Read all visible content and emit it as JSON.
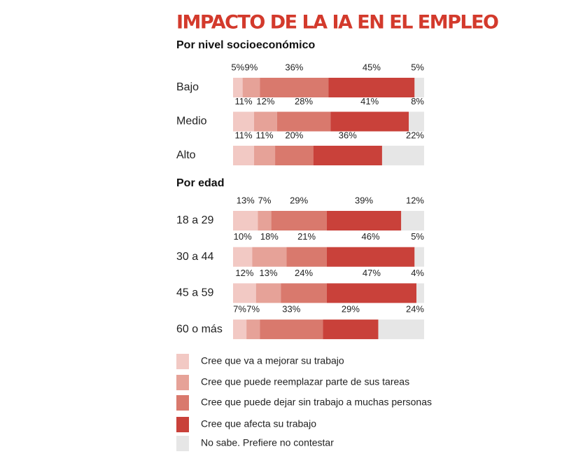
{
  "title": "IMPACTO DE LA IA  EN EL EMPLEO",
  "chart_data": [
    {
      "type": "bar",
      "stacked": true,
      "subtitle": "Por nivel socioeconómico",
      "categories": [
        "Bajo",
        "Medio",
        "Alto"
      ],
      "xlim": [
        0,
        100
      ],
      "series": [
        {
          "name": "Cree que va a mejorar su trabajo",
          "color": "#f2c9c4",
          "values": [
            5,
            11,
            11
          ],
          "value_labels": [
            "5%",
            "11%",
            "11%"
          ]
        },
        {
          "name": "Cree que puede reemplazar parte de sus tareas",
          "color": "#e6a298",
          "values": [
            9,
            12,
            11
          ],
          "value_labels": [
            "9%",
            "12%",
            "11%"
          ]
        },
        {
          "name": "Cree que puede dejar sin trabajo a muchas personas",
          "color": "#d9796d",
          "values": [
            36,
            28,
            20
          ],
          "value_labels": [
            "36%",
            "28%",
            "20%"
          ]
        },
        {
          "name": "Cree que afecta su trabajo",
          "color": "#c9413a",
          "values": [
            45,
            41,
            36
          ],
          "value_labels": [
            "45%",
            "41%",
            "36%"
          ]
        },
        {
          "name": "No sabe. Prefiere no contestar",
          "color": "#e6e6e6",
          "values": [
            5,
            8,
            22
          ],
          "value_labels": [
            "5%",
            "8%",
            "22%"
          ]
        }
      ]
    },
    {
      "type": "bar",
      "stacked": true,
      "subtitle": "Por edad",
      "categories": [
        "18 a 29",
        "30 a 44",
        "45 a 59",
        "60 o más"
      ],
      "xlim": [
        0,
        100
      ],
      "series": [
        {
          "color": "#f2c9c4",
          "values": [
            13,
            10,
            12,
            7
          ],
          "value_labels": [
            "13%",
            "10%",
            "12%",
            "7%"
          ]
        },
        {
          "color": "#e6a298",
          "values": [
            7,
            18,
            13,
            7
          ],
          "value_labels": [
            "7%",
            "18%",
            "13%",
            "7%"
          ]
        },
        {
          "color": "#d9796d",
          "values": [
            29,
            21,
            24,
            33
          ],
          "value_labels": [
            "29%",
            "21%",
            "24%",
            "33%"
          ]
        },
        {
          "color": "#c9413a",
          "values": [
            39,
            46,
            47,
            29
          ],
          "value_labels": [
            "39%",
            "46%",
            "47%",
            "29%"
          ]
        },
        {
          "color": "#e6e6e6",
          "values": [
            12,
            5,
            4,
            24
          ],
          "value_labels": [
            "12%",
            "5%",
            "4%",
            "24%"
          ]
        }
      ]
    }
  ]
}
